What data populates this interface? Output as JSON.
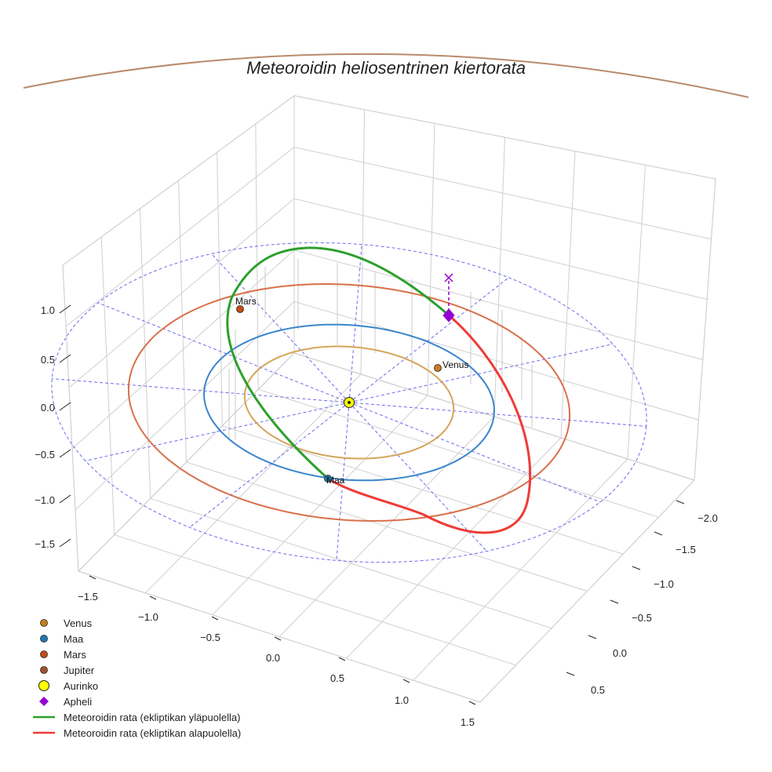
{
  "chart_data": {
    "type": "3d-line",
    "title": "Meteoroidin heliosentrinen kiertorata",
    "axes": {
      "x": {
        "ticks": [
          -1.5,
          -1.0,
          -0.5,
          0.0,
          0.5,
          1.0,
          1.5
        ],
        "tick_labels": [
          "−1.5",
          "−1.0",
          "−0.5",
          "0.0",
          "0.5",
          "1.0",
          "1.5"
        ]
      },
      "y": {
        "ticks": [
          -2.0,
          -1.5,
          -1.0,
          -0.5,
          0.0,
          0.5
        ],
        "tick_labels": [
          "−2.0",
          "−1.5",
          "−1.0",
          "−0.5",
          "0.0",
          "0.5"
        ]
      },
      "z": {
        "ticks": [
          -1.5,
          -1.0,
          -0.5,
          0.0,
          0.5,
          1.0
        ],
        "tick_labels": [
          "−1.5",
          "−1.0",
          "−0.5",
          "0.0",
          "0.5",
          "1.0"
        ]
      }
    },
    "planets": [
      {
        "name": "Venus",
        "radius_au": 0.72,
        "color": "#d4a55a",
        "marker_color": "#c97d1e",
        "label": "Venus"
      },
      {
        "name": "Maa",
        "radius_au": 1.0,
        "color": "#3a85cc",
        "marker_color": "#1f77b4",
        "label": "Maa"
      },
      {
        "name": "Mars",
        "radius_au": 1.52,
        "color": "#d9704a",
        "marker_color": "#c94a16",
        "label": "Mars"
      }
    ],
    "sun": {
      "name": "Aurinko",
      "color": "#ffff00"
    },
    "aphelion": {
      "name": "Apheli",
      "color": "#9400d3"
    },
    "meteoroid_orbit": {
      "above_ecliptic_color": "#2ca02c",
      "below_ecliptic_color": "#ef3b36"
    },
    "reference_ellipse_color": "#6a6af0",
    "legend": [
      {
        "type": "dot",
        "color": "#c97d1e",
        "label": "Venus"
      },
      {
        "type": "dot",
        "color": "#1f77b4",
        "label": "Maa"
      },
      {
        "type": "dot",
        "color": "#c94a16",
        "label": "Mars"
      },
      {
        "type": "dot",
        "color": "#a0522d",
        "label": "Jupiter"
      },
      {
        "type": "sun",
        "color": "#ffff00",
        "label": "Aurinko"
      },
      {
        "type": "diamond",
        "color": "#9400d3",
        "label": "Apheli"
      },
      {
        "type": "line",
        "color": "#2ca02c",
        "label": "Meteoroidin rata (ekliptikan yläpuolella)"
      },
      {
        "type": "line",
        "color": "#ef3b36",
        "label": "Meteoroidin rata (ekliptikan alapuolella)"
      }
    ],
    "jupiter_arc_color": "#b98a6c"
  }
}
